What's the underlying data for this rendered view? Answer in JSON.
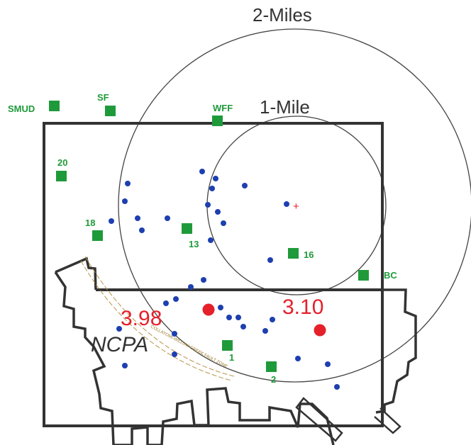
{
  "map": {
    "ring_labels": {
      "two_mile": "2-Miles",
      "one_mile": "1-Mile"
    },
    "area_label": "NCPA",
    "fault_label": "COLLAYOMI-WILLOW GREEK FAULT ZONE",
    "center_marker": "+",
    "stations": {
      "smud": "SMUD",
      "sf": "SF",
      "wff": "WFF",
      "s20": "20",
      "s18": "18",
      "s13": "13",
      "s16": "16",
      "bc": "BC",
      "s1": "1",
      "s2": "2"
    },
    "magnitudes": {
      "m1": "3.98",
      "m2": "3.10"
    },
    "colors": {
      "station": "#1f9a3a",
      "epicenter": "#1d3fb0",
      "event": "#e5202b",
      "outline": "#333333",
      "fault": "#b8944a"
    }
  }
}
